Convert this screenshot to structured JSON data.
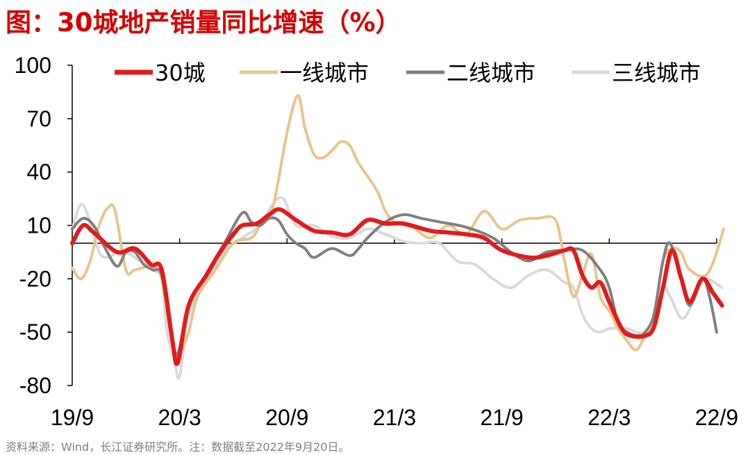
{
  "title": "图：30城地产销量同比增速（%）",
  "source": "资料来源：Wind，长江证券研究所。注：数据截至2022年9月20日。",
  "chart_data": {
    "type": "line",
    "title": "图：30城地产销量同比增速（%）",
    "xlabel": "",
    "ylabel": "",
    "ylim": [
      -80,
      100
    ],
    "yticks": [
      100,
      70,
      40,
      10,
      -20,
      -50,
      -80
    ],
    "xlim": [
      0,
      36
    ],
    "xticks": [
      {
        "pos": 0,
        "label": "19/9"
      },
      {
        "pos": 6,
        "label": "20/3"
      },
      {
        "pos": 12,
        "label": "20/9"
      },
      {
        "pos": 18,
        "label": "21/3"
      },
      {
        "pos": 24,
        "label": "21/9"
      },
      {
        "pos": 30,
        "label": "22/3"
      },
      {
        "pos": 36,
        "label": "22/9"
      }
    ],
    "baseline": 0,
    "legend_position": "top",
    "grid": false,
    "series": [
      {
        "name": "30城",
        "color": "#e31a1c",
        "width": 6,
        "points": [
          [
            0,
            0
          ],
          [
            0.6,
            10
          ],
          [
            1.2,
            6
          ],
          [
            2.5,
            -5
          ],
          [
            3.5,
            -3
          ],
          [
            4.4,
            -12
          ],
          [
            5,
            -15
          ],
          [
            5.6,
            -55
          ],
          [
            5.9,
            -67
          ],
          [
            6.5,
            -35
          ],
          [
            7.5,
            -18
          ],
          [
            8.2,
            -6
          ],
          [
            9,
            5
          ],
          [
            9.5,
            10
          ],
          [
            10.3,
            11
          ],
          [
            11,
            16
          ],
          [
            11.6,
            19
          ],
          [
            12.5,
            13
          ],
          [
            13.5,
            7
          ],
          [
            14.5,
            6
          ],
          [
            15.5,
            5
          ],
          [
            16.5,
            13
          ],
          [
            17.5,
            11
          ],
          [
            18.5,
            11
          ],
          [
            20,
            7
          ],
          [
            21,
            6
          ],
          [
            22,
            5
          ],
          [
            23,
            3
          ],
          [
            24,
            -4
          ],
          [
            25.5,
            -8
          ],
          [
            26.5,
            -7
          ],
          [
            27.5,
            -4
          ],
          [
            28,
            -4
          ],
          [
            28.5,
            -18
          ],
          [
            29,
            -25
          ],
          [
            29.5,
            -22
          ],
          [
            30,
            -33
          ],
          [
            30.7,
            -48
          ],
          [
            31.2,
            -52
          ],
          [
            32,
            -52
          ],
          [
            32.5,
            -47
          ],
          [
            33,
            -25
          ],
          [
            33.5,
            -4
          ],
          [
            34,
            -19
          ],
          [
            34.5,
            -33
          ],
          [
            35.2,
            -20
          ],
          [
            35.8,
            -28
          ],
          [
            36.3,
            -35
          ]
        ]
      },
      {
        "name": "一线城市",
        "color": "#e8c48e",
        "width": 4,
        "points": [
          [
            0,
            -14
          ],
          [
            0.5,
            -20
          ],
          [
            1,
            -10
          ],
          [
            1.5,
            10
          ],
          [
            2,
            20
          ],
          [
            2.4,
            18
          ],
          [
            3,
            -15
          ],
          [
            3.5,
            -15
          ],
          [
            4.5,
            -13
          ],
          [
            5,
            -20
          ],
          [
            5.4,
            -45
          ],
          [
            5.7,
            -60
          ],
          [
            6,
            -62
          ],
          [
            6.5,
            -50
          ],
          [
            7,
            -30
          ],
          [
            8,
            -15
          ],
          [
            9,
            0
          ],
          [
            10,
            3
          ],
          [
            10.5,
            10
          ],
          [
            11.2,
            20
          ],
          [
            12,
            62
          ],
          [
            12.6,
            83
          ],
          [
            13,
            65
          ],
          [
            13.5,
            50
          ],
          [
            14,
            48
          ],
          [
            14.5,
            52
          ],
          [
            15,
            57
          ],
          [
            15.5,
            55
          ],
          [
            16,
            45
          ],
          [
            17,
            30
          ],
          [
            17.5,
            18
          ],
          [
            18,
            12
          ],
          [
            19,
            9
          ],
          [
            20,
            3
          ],
          [
            21,
            10
          ],
          [
            22,
            5
          ],
          [
            23,
            18
          ],
          [
            24,
            8
          ],
          [
            25,
            13
          ],
          [
            26,
            14
          ],
          [
            27,
            13
          ],
          [
            27.5,
            -10
          ],
          [
            28,
            -30
          ],
          [
            28.5,
            -18
          ],
          [
            29,
            -6
          ],
          [
            29.5,
            -30
          ],
          [
            30,
            -38
          ],
          [
            30.5,
            -48
          ],
          [
            31,
            -55
          ],
          [
            31.5,
            -60
          ],
          [
            32,
            -52
          ],
          [
            32.5,
            -40
          ],
          [
            33,
            -10
          ],
          [
            33.5,
            -3
          ],
          [
            34,
            -5
          ],
          [
            34.5,
            -15
          ],
          [
            35.5,
            -17
          ],
          [
            36.4,
            8
          ]
        ]
      },
      {
        "name": "二线城市",
        "color": "#7f7f7f",
        "width": 4,
        "points": [
          [
            0,
            8
          ],
          [
            0.6,
            14
          ],
          [
            1.2,
            10
          ],
          [
            1.8,
            -2
          ],
          [
            2.5,
            -13
          ],
          [
            3,
            -5
          ],
          [
            3.5,
            -5
          ],
          [
            4,
            -12
          ],
          [
            4.5,
            -15
          ],
          [
            5,
            -18
          ],
          [
            5.5,
            -50
          ],
          [
            5.9,
            -62
          ],
          [
            6.5,
            -35
          ],
          [
            7.5,
            -17
          ],
          [
            8.5,
            0
          ],
          [
            9.5,
            17
          ],
          [
            10,
            12
          ],
          [
            10.5,
            10
          ],
          [
            11,
            14
          ],
          [
            11.5,
            13
          ],
          [
            12,
            5
          ],
          [
            12.5,
            0
          ],
          [
            13,
            -3
          ],
          [
            13.5,
            -8
          ],
          [
            14.5,
            -3
          ],
          [
            15.5,
            -7
          ],
          [
            16,
            -3
          ],
          [
            16.5,
            3
          ],
          [
            17.5,
            12
          ],
          [
            18.5,
            16
          ],
          [
            19.5,
            14
          ],
          [
            20.5,
            12
          ],
          [
            22,
            9
          ],
          [
            23.5,
            3
          ],
          [
            24.5,
            -5
          ],
          [
            25.5,
            -10
          ],
          [
            26.5,
            -5
          ],
          [
            27.5,
            -4
          ],
          [
            28.5,
            -4
          ],
          [
            29.5,
            -15
          ],
          [
            30,
            -25
          ],
          [
            30.5,
            -45
          ],
          [
            31,
            -50
          ],
          [
            31.6,
            -52
          ],
          [
            32,
            -50
          ],
          [
            32.5,
            -40
          ],
          [
            33,
            -10
          ],
          [
            33.4,
            0
          ],
          [
            34,
            -20
          ],
          [
            34.5,
            -35
          ],
          [
            35.2,
            -20
          ],
          [
            35.6,
            -30
          ],
          [
            36,
            -50
          ]
        ]
      },
      {
        "name": "三线城市",
        "color": "#d9d9d9",
        "width": 4,
        "points": [
          [
            0,
            8
          ],
          [
            0.5,
            22
          ],
          [
            1,
            12
          ],
          [
            1.5,
            -5
          ],
          [
            2,
            -8
          ],
          [
            2.5,
            -5
          ],
          [
            3,
            -5
          ],
          [
            3.5,
            -8
          ],
          [
            4.5,
            -15
          ],
          [
            5,
            -20
          ],
          [
            5.3,
            -50
          ],
          [
            5.7,
            -65
          ],
          [
            6,
            -75
          ],
          [
            6.5,
            -40
          ],
          [
            7.5,
            -22
          ],
          [
            8.5,
            -5
          ],
          [
            9.5,
            3
          ],
          [
            10.5,
            10
          ],
          [
            11.2,
            22
          ],
          [
            11.8,
            25
          ],
          [
            12.5,
            10
          ],
          [
            13.5,
            10
          ],
          [
            14.5,
            4
          ],
          [
            15.5,
            3
          ],
          [
            16.5,
            8
          ],
          [
            17.5,
            5
          ],
          [
            18.5,
            1
          ],
          [
            19.5,
            0
          ],
          [
            20.5,
            0
          ],
          [
            21.5,
            -10
          ],
          [
            22.5,
            -12
          ],
          [
            23.5,
            -20
          ],
          [
            24.5,
            -25
          ],
          [
            25.5,
            -18
          ],
          [
            26.5,
            -15
          ],
          [
            27.5,
            -22
          ],
          [
            28,
            -25
          ],
          [
            28.5,
            -40
          ],
          [
            29,
            -48
          ],
          [
            29.5,
            -50
          ],
          [
            30,
            -48
          ],
          [
            31,
            -48
          ],
          [
            31.5,
            -50
          ],
          [
            32,
            -50
          ],
          [
            32.5,
            -45
          ],
          [
            33,
            -25
          ],
          [
            33.4,
            -30
          ],
          [
            34,
            -42
          ],
          [
            34.5,
            -37
          ],
          [
            35,
            -22
          ],
          [
            35.5,
            -20
          ],
          [
            36.3,
            -25
          ]
        ]
      }
    ]
  }
}
